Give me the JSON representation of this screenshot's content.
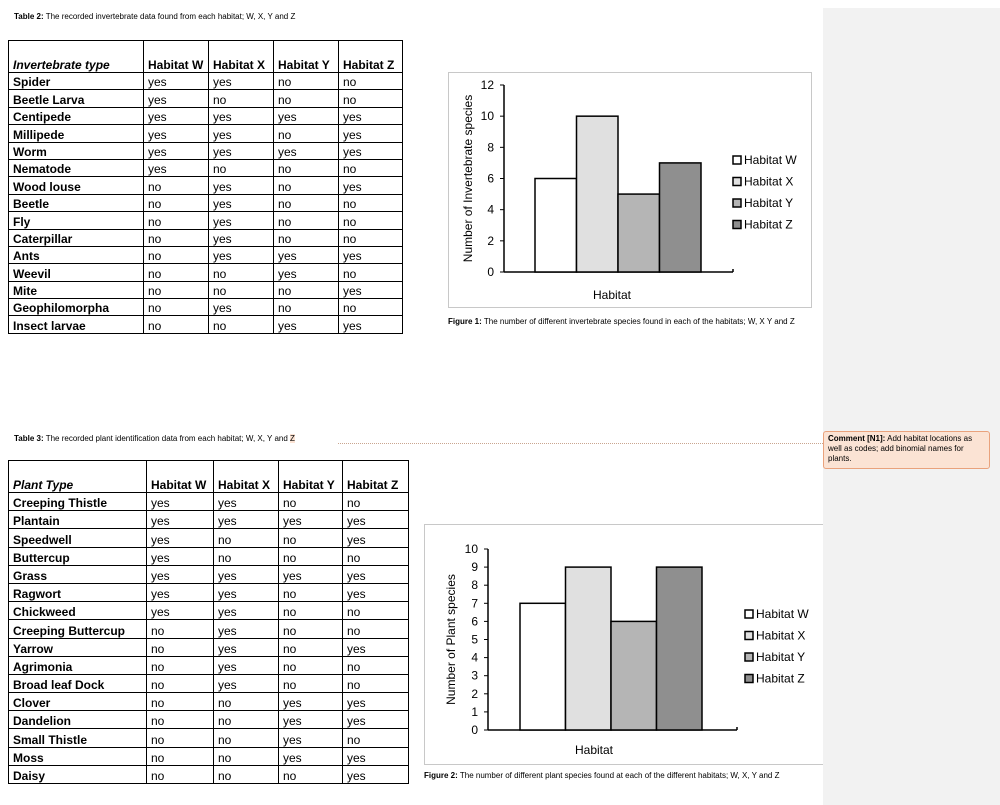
{
  "table2": {
    "caption_label": "Table 2:",
    "caption_text": " The recorded invertebrate data found from each habitat; W, X, Y and Z",
    "headers": [
      "Invertebrate type",
      "Habitat W",
      "Habitat X",
      "Habitat Y",
      "Habitat Z"
    ],
    "rows": [
      [
        "Spider",
        "yes",
        "yes",
        "no",
        "no"
      ],
      [
        "Beetle Larva",
        "yes",
        "no",
        "no",
        "no"
      ],
      [
        "Centipede",
        "yes",
        "yes",
        "yes",
        "yes"
      ],
      [
        "Millipede",
        "yes",
        "yes",
        "no",
        "yes"
      ],
      [
        "Worm",
        "yes",
        "yes",
        "yes",
        "yes"
      ],
      [
        "Nematode",
        "yes",
        "no",
        "no",
        "no"
      ],
      [
        "Wood louse",
        "no",
        "yes",
        "no",
        "yes"
      ],
      [
        "Beetle",
        "no",
        "yes",
        "no",
        "no"
      ],
      [
        "Fly",
        "no",
        "yes",
        "no",
        "no"
      ],
      [
        "Caterpillar",
        "no",
        "yes",
        "no",
        "no"
      ],
      [
        "Ants",
        "no",
        "yes",
        "yes",
        "yes"
      ],
      [
        "Weevil",
        "no",
        "no",
        "yes",
        "no"
      ],
      [
        "Mite",
        "no",
        "no",
        "no",
        "yes"
      ],
      [
        "Geophilomorpha",
        "no",
        "yes",
        "no",
        "no"
      ],
      [
        "Insect larvae",
        "no",
        "no",
        "yes",
        "yes"
      ]
    ]
  },
  "table3": {
    "caption_label": "Table 3:",
    "caption_text": " The recorded plant identification data from each habitat; W, X, Y and ",
    "caption_highlight": "Z",
    "headers": [
      "Plant Type",
      "Habitat W",
      "Habitat X",
      "Habitat Y",
      "Habitat Z"
    ],
    "rows": [
      [
        "Creeping Thistle",
        "yes",
        "yes",
        "no",
        "no"
      ],
      [
        "Plantain",
        "yes",
        "yes",
        "yes",
        "yes"
      ],
      [
        "Speedwell",
        "yes",
        "no",
        "no",
        "yes"
      ],
      [
        "Buttercup",
        "yes",
        "no",
        "no",
        "no"
      ],
      [
        "Grass",
        "yes",
        "yes",
        "yes",
        "yes"
      ],
      [
        "Ragwort",
        "yes",
        "yes",
        "no",
        "yes"
      ],
      [
        "Chickweed",
        "yes",
        "yes",
        "no",
        "no"
      ],
      [
        "Creeping Buttercup",
        "no",
        "yes",
        "no",
        "no"
      ],
      [
        "Yarrow",
        "no",
        "yes",
        "no",
        "yes"
      ],
      [
        "Agrimonia",
        "no",
        "yes",
        "no",
        "no"
      ],
      [
        "Broad leaf Dock",
        "no",
        "yes",
        "no",
        "no"
      ],
      [
        "Clover",
        "no",
        "no",
        "yes",
        "yes"
      ],
      [
        "Dandelion",
        "no",
        "no",
        "yes",
        "yes"
      ],
      [
        "Small Thistle",
        "no",
        "no",
        "yes",
        "no"
      ],
      [
        "Moss",
        "no",
        "no",
        "yes",
        "yes"
      ],
      [
        "Daisy",
        "no",
        "no",
        "no",
        "yes"
      ]
    ]
  },
  "figure1": {
    "caption_label": "Figure 1:",
    "caption_text": " The number of different invertebrate species found in each of the habitats; W, X Y and Z"
  },
  "figure2": {
    "caption_label": "Figure 2:",
    "caption_text": " The number of different plant species found at each of the different habitats; W, X, Y and Z"
  },
  "comment": {
    "label": "Comment [N1]:",
    "text": " Add habitat locations as well as codes; add binomial names for plants."
  },
  "colors": {
    "habitat_w": "#ffffff",
    "habitat_x": "#e0e0e0",
    "habitat_y": "#b5b5b5",
    "habitat_z": "#8f8f8f"
  },
  "chart_data": [
    {
      "type": "bar",
      "categories": [
        "Habitat"
      ],
      "series": [
        {
          "name": "Habitat W",
          "values": [
            6
          ]
        },
        {
          "name": "Habitat X",
          "values": [
            10
          ]
        },
        {
          "name": "Habitat Y",
          "values": [
            5
          ]
        },
        {
          "name": "Habitat Z",
          "values": [
            7
          ]
        }
      ],
      "xlabel": "Habitat",
      "ylabel": "Number of Invertebrate species",
      "ylim": [
        0,
        12
      ],
      "yticks": [
        0,
        2,
        4,
        6,
        8,
        10,
        12
      ],
      "grid": false,
      "legend": "right"
    },
    {
      "type": "bar",
      "categories": [
        "Habitat"
      ],
      "series": [
        {
          "name": "Habitat W",
          "values": [
            7
          ]
        },
        {
          "name": "Habitat X",
          "values": [
            9
          ]
        },
        {
          "name": "Habitat Y",
          "values": [
            6
          ]
        },
        {
          "name": "Habitat Z",
          "values": [
            9
          ]
        }
      ],
      "xlabel": "Habitat",
      "ylabel": "Number of Plant species",
      "ylim": [
        0,
        10
      ],
      "yticks": [
        0,
        1,
        2,
        3,
        4,
        5,
        6,
        7,
        8,
        9,
        10
      ],
      "grid": false,
      "legend": "right"
    }
  ]
}
